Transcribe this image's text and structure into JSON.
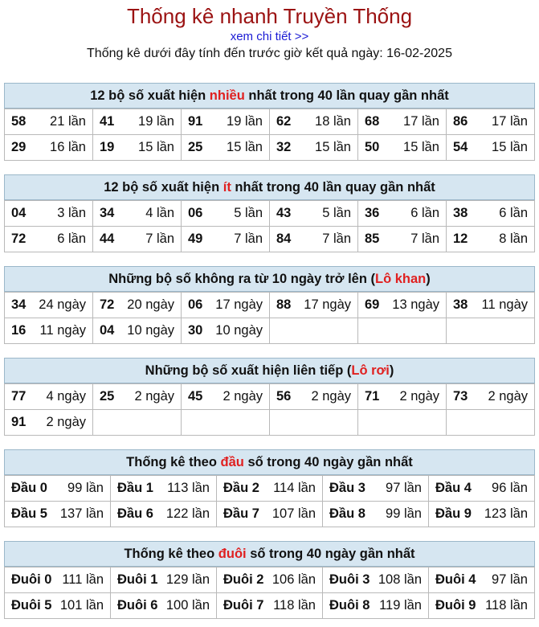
{
  "header": {
    "title": "Thống kê nhanh Truyền Thống",
    "more_link": "xem chi tiết >>",
    "subtitle": "Thống kê dưới đây tính đến trước giờ kết quả ngày: 16-02-2025"
  },
  "sections": [
    {
      "title_pre": "12 bộ số xuất hiện ",
      "title_hl": "nhiều",
      "title_post": " nhất trong 40 lần quay gần nhất",
      "rows": [
        [
          [
            "58",
            "21 lần"
          ],
          [
            "41",
            "19 lần"
          ],
          [
            "91",
            "19 lần"
          ],
          [
            "62",
            "18 lần"
          ],
          [
            "68",
            "17 lần"
          ],
          [
            "86",
            "17 lần"
          ]
        ],
        [
          [
            "29",
            "16 lần"
          ],
          [
            "19",
            "15 lần"
          ],
          [
            "25",
            "15 lần"
          ],
          [
            "32",
            "15 lần"
          ],
          [
            "50",
            "15 lần"
          ],
          [
            "54",
            "15 lần"
          ]
        ]
      ]
    },
    {
      "title_pre": "12 bộ số xuất hiện ",
      "title_hl": "ít",
      "title_post": " nhất trong 40 lần quay gần nhất",
      "rows": [
        [
          [
            "04",
            "3 lần"
          ],
          [
            "34",
            "4 lần"
          ],
          [
            "06",
            "5 lần"
          ],
          [
            "43",
            "5 lần"
          ],
          [
            "36",
            "6 lần"
          ],
          [
            "38",
            "6 lần"
          ]
        ],
        [
          [
            "72",
            "6 lần"
          ],
          [
            "44",
            "7 lần"
          ],
          [
            "49",
            "7 lần"
          ],
          [
            "84",
            "7 lần"
          ],
          [
            "85",
            "7 lần"
          ],
          [
            "12",
            "8 lần"
          ]
        ]
      ]
    },
    {
      "title_pre": "Những bộ số không ra từ 10 ngày trở lên (",
      "title_hl": "Lô khan",
      "title_post": ")",
      "rows": [
        [
          [
            "34",
            "24 ngày"
          ],
          [
            "72",
            "20 ngày"
          ],
          [
            "06",
            "17 ngày"
          ],
          [
            "88",
            "17 ngày"
          ],
          [
            "69",
            "13 ngày"
          ],
          [
            "38",
            "11 ngày"
          ]
        ],
        [
          [
            "16",
            "11 ngày"
          ],
          [
            "04",
            "10 ngày"
          ],
          [
            "30",
            "10 ngày"
          ],
          [
            "",
            ""
          ],
          [
            "",
            ""
          ],
          [
            "",
            ""
          ]
        ]
      ]
    },
    {
      "title_pre": "Những bộ số xuất hiện liên tiếp (",
      "title_hl": "Lô rơi",
      "title_post": ")",
      "rows": [
        [
          [
            "77",
            "4 ngày"
          ],
          [
            "25",
            "2 ngày"
          ],
          [
            "45",
            "2 ngày"
          ],
          [
            "56",
            "2 ngày"
          ],
          [
            "71",
            "2 ngày"
          ],
          [
            "73",
            "2 ngày"
          ]
        ],
        [
          [
            "91",
            "2 ngày"
          ],
          [
            "",
            ""
          ],
          [
            "",
            ""
          ],
          [
            "",
            ""
          ],
          [
            "",
            ""
          ],
          [
            "",
            ""
          ]
        ]
      ]
    },
    {
      "title_pre": "Thống kê theo ",
      "title_hl": "đầu",
      "title_post": " số trong 40 ngày gần nhất",
      "rows": [
        [
          [
            "Đầu 0",
            "99 lần"
          ],
          [
            "Đầu 1",
            "113 lần"
          ],
          [
            "Đầu 2",
            "114 lần"
          ],
          [
            "Đầu 3",
            "97 lần"
          ],
          [
            "Đầu 4",
            "96 lần"
          ]
        ],
        [
          [
            "Đầu 5",
            "137 lần"
          ],
          [
            "Đầu 6",
            "122 lần"
          ],
          [
            "Đầu 7",
            "107 lần"
          ],
          [
            "Đầu 8",
            "99 lần"
          ],
          [
            "Đầu 9",
            "123 lần"
          ]
        ]
      ]
    },
    {
      "title_pre": "Thống kê theo ",
      "title_hl": "đuôi",
      "title_post": " số trong 40 ngày gần nhất",
      "rows": [
        [
          [
            "Đuôi 0",
            "111 lần"
          ],
          [
            "Đuôi 1",
            "129 lần"
          ],
          [
            "Đuôi 2",
            "106 lần"
          ],
          [
            "Đuôi 3",
            "108 lần"
          ],
          [
            "Đuôi 4",
            "97 lần"
          ]
        ],
        [
          [
            "Đuôi 5",
            "101 lần"
          ],
          [
            "Đuôi 6",
            "100 lần"
          ],
          [
            "Đuôi 7",
            "118 lần"
          ],
          [
            "Đuôi 8",
            "119 lần"
          ],
          [
            "Đuôi 9",
            "118 lần"
          ]
        ]
      ]
    }
  ],
  "colors": {
    "header_title": "#9b1212",
    "link": "#1a1ad4",
    "highlight": "#e02020",
    "section_bg": "#d6e6f1"
  }
}
